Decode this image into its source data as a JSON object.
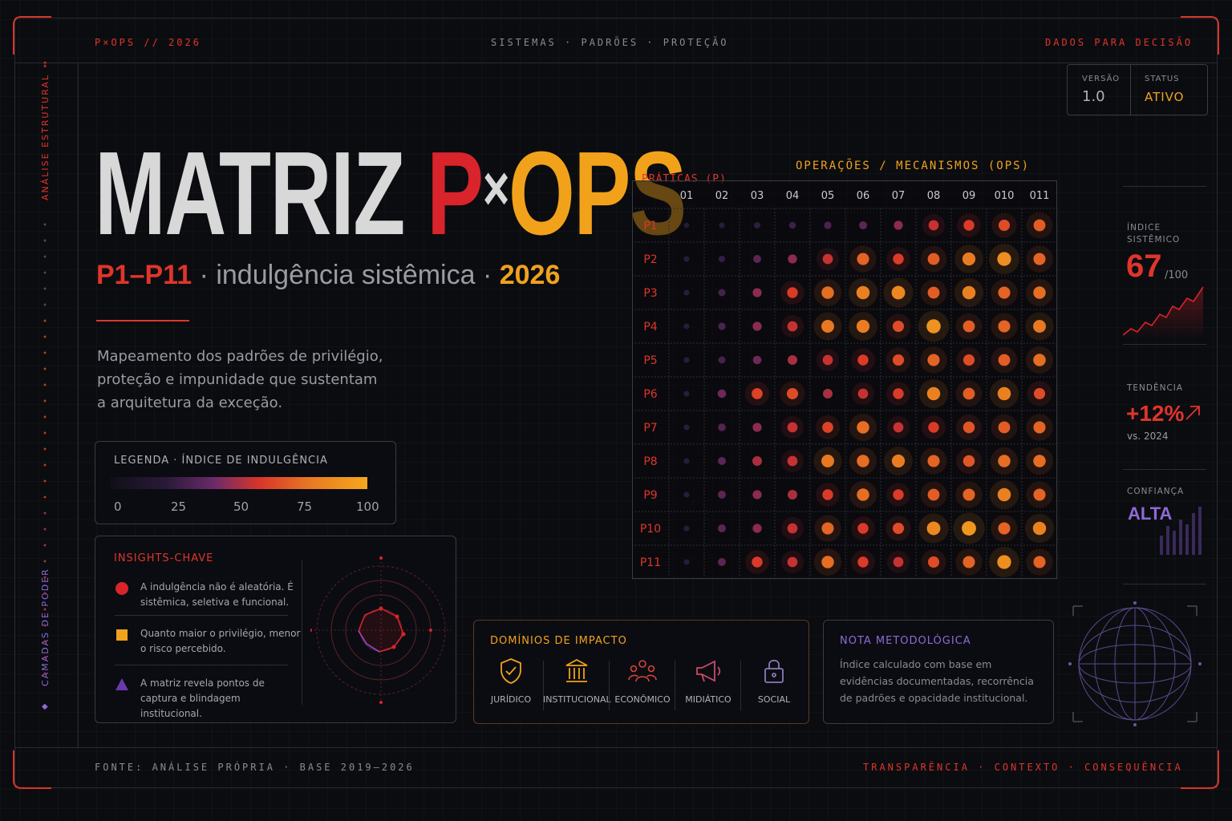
{
  "header": {
    "left": "P×OPS // 2026",
    "center": "SISTEMAS · PADRÕES · PROTEÇÃO",
    "right": "DADOS PARA DECISÃO"
  },
  "version_box": {
    "version_label": "VERSÃO",
    "version_value": "1.0",
    "status_label": "STATUS",
    "status_value": "ATIVO"
  },
  "sidebar": {
    "top_label": "ANÁLISE ESTRUTURAL",
    "bottom_label": "CAMADAS DE PODER"
  },
  "title": {
    "word": "MATRIZ",
    "p": "P",
    "x": "×",
    "ops": "OPS"
  },
  "subtitle": {
    "range": "P1–P11",
    "sep1": " · ",
    "topic": "indulgência sistêmica",
    "sep2": " · ",
    "year": "2026"
  },
  "description": "Mapeamento dos padrões de privilégio, proteção e impunidade que sustentam a arquitetura da exceção.",
  "legend": {
    "title": "LEGENDA · ÍNDICE DE INDULGÊNCIA",
    "ticks": [
      "0",
      "25",
      "50",
      "75",
      "100"
    ]
  },
  "insights": {
    "title": "INSIGHTS-CHAVE",
    "items": [
      {
        "icon": "red-circle-icon",
        "text": "A indulgência não é aleatória. É sistêmica, seletiva e funcional."
      },
      {
        "icon": "orange-square-icon",
        "text": "Quanto maior o privilégio, menor o risco percebido."
      },
      {
        "icon": "purple-triangle-icon",
        "text": "A matriz revela pontos de captura e blindagem institucional."
      }
    ]
  },
  "domains": {
    "title": "DOMÍNIOS DE IMPACTO",
    "items": [
      {
        "label": "JURÍDICO",
        "icon": "shield-check-icon"
      },
      {
        "label": "INSTITUCIONAL",
        "icon": "institution-icon"
      },
      {
        "label": "ECONÔMICO",
        "icon": "people-network-icon"
      },
      {
        "label": "MIDIÁTICO",
        "icon": "megaphone-icon"
      },
      {
        "label": "SOCIAL",
        "icon": "padlock-icon"
      }
    ]
  },
  "note": {
    "title": "NOTA METODOLÓGICA",
    "body": "Índice calculado com base em evidências documentadas, recorrência de padrões e opacidade institucional."
  },
  "metrics": {
    "index_label": "ÍNDICE SISTÊMICO",
    "index_value": "67",
    "index_unit": "/100",
    "trend_label": "TENDÊNCIA",
    "trend_value": "+12%",
    "trend_vs": "vs. 2024",
    "confidence_label": "CONFIANÇA",
    "confidence_value": "ALTA"
  },
  "footer": {
    "left": "FONTE: ANÁLISE PRÓPRIA · BASE 2019–2026",
    "right": "TRANSPARÊNCIA · CONTEXTO · CONSEQUÊNCIA"
  },
  "colors": {
    "red": "#e0352a",
    "orange": "#f0a21e",
    "purple": "#8e6ad8",
    "background": "#0b0c10"
  },
  "chart_data": {
    "type": "heatmap",
    "title": "OPERAÇÕES / MECANISMOS (OPS)",
    "row_axis_label": "PRÁTICAS (P)",
    "columns": [
      "01",
      "02",
      "03",
      "04",
      "05",
      "06",
      "07",
      "08",
      "09",
      "010",
      "011"
    ],
    "rows": [
      "P1",
      "P2",
      "P3",
      "P4",
      "P5",
      "P6",
      "P7",
      "P8",
      "P9",
      "P10",
      "P11"
    ],
    "scale": [
      0,
      100
    ],
    "values": [
      [
        12,
        15,
        20,
        25,
        30,
        35,
        45,
        55,
        60,
        65,
        70
      ],
      [
        14,
        22,
        35,
        45,
        55,
        72,
        60,
        70,
        80,
        88,
        72
      ],
      [
        15,
        28,
        45,
        60,
        75,
        82,
        85,
        70,
        82,
        72,
        75
      ],
      [
        15,
        30,
        45,
        55,
        78,
        80,
        65,
        90,
        70,
        72,
        78
      ],
      [
        15,
        28,
        40,
        50,
        55,
        60,
        65,
        72,
        65,
        70,
        75
      ],
      [
        15,
        40,
        62,
        65,
        50,
        55,
        60,
        82,
        70,
        82,
        65
      ],
      [
        15,
        32,
        45,
        55,
        62,
        75,
        55,
        60,
        68,
        70,
        72
      ],
      [
        15,
        35,
        50,
        55,
        78,
        75,
        80,
        72,
        68,
        75,
        75
      ],
      [
        15,
        35,
        45,
        50,
        60,
        75,
        60,
        70,
        72,
        82,
        72
      ],
      [
        15,
        35,
        45,
        55,
        72,
        60,
        65,
        85,
        92,
        72,
        82
      ],
      [
        15,
        35,
        60,
        55,
        75,
        60,
        55,
        65,
        72,
        88,
        72
      ]
    ]
  }
}
